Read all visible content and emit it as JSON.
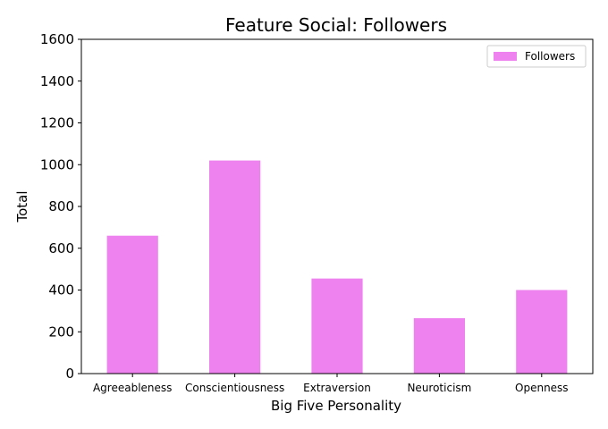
{
  "chart_data": {
    "type": "bar",
    "title": "Feature Social: Followers",
    "xlabel": "Big Five Personality",
    "ylabel": "Total",
    "categories": [
      "Agreeableness",
      "Conscientiousness",
      "Extraversion",
      "Neuroticism",
      "Openness"
    ],
    "series": [
      {
        "name": "Followers",
        "values": [
          660,
          1020,
          455,
          265,
          400
        ],
        "color": "#ee82ee"
      }
    ],
    "ylim": [
      0,
      1600
    ],
    "yticks": [
      0,
      200,
      400,
      600,
      800,
      1000,
      1200,
      1400,
      1600
    ],
    "grid": false,
    "legend_position": "top-right"
  }
}
